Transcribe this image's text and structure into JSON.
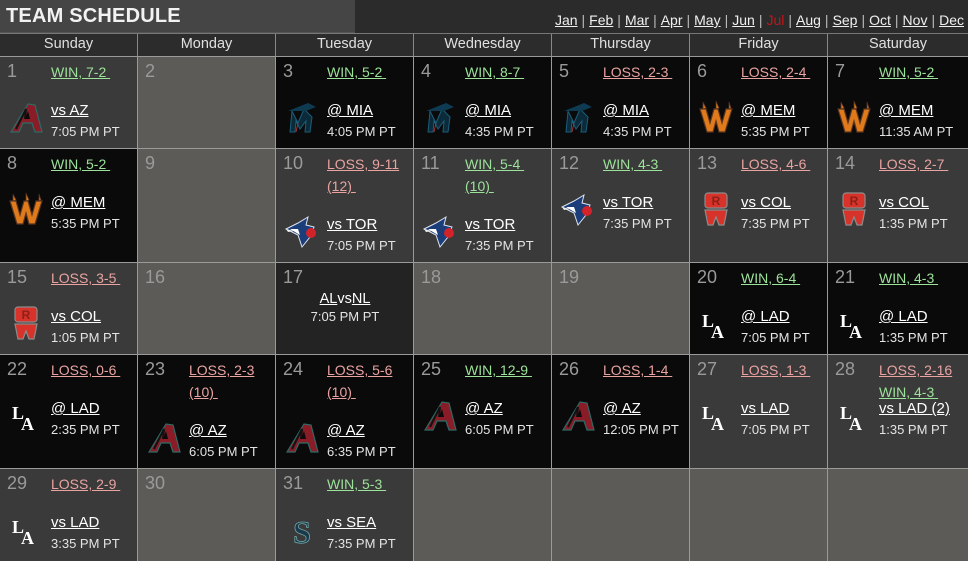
{
  "header": {
    "title": "TEAM SCHEDULE",
    "months": [
      "Jan",
      "Feb",
      "Mar",
      "Apr",
      "May",
      "Jun",
      "Jul",
      "Aug",
      "Sep",
      "Oct",
      "Nov",
      "Dec"
    ],
    "current_month": "Jul",
    "current_month_color": "#c0161b"
  },
  "weekdays": [
    "Sunday",
    "Monday",
    "Tuesday",
    "Wednesday",
    "Thursday",
    "Friday",
    "Saturday"
  ],
  "colors": {
    "win": "#9de29a",
    "loss": "#e9a3a1",
    "home_cell": "#3a3a3a",
    "away_cell": "#0a0a0a",
    "off_cell": "#5c5b57"
  },
  "days": {
    "d1": {
      "num": "1",
      "result": "WIN, 7-2 ",
      "opp": "vs AZ",
      "time": "7:05 PM PT",
      "logo": "diamondbacks-logo"
    },
    "d2": {
      "num": "2"
    },
    "d3": {
      "num": "3",
      "result": "WIN, 5-2 ",
      "opp": "@ MIA",
      "time": "4:05 PM PT",
      "logo": "marlins-logo"
    },
    "d4": {
      "num": "4",
      "result": "WIN, 8-7 ",
      "opp": "@ MIA",
      "time": "4:35 PM PT",
      "logo": "marlins-logo"
    },
    "d5": {
      "num": "5",
      "result": "LOSS, 2-3 ",
      "opp": "@ MIA",
      "time": "4:35 PM PT",
      "logo": "marlins-logo"
    },
    "d6": {
      "num": "6",
      "result": "LOSS, 2-4 ",
      "opp": "@ MEM",
      "time": "5:35 PM PT",
      "logo": "redbirds-logo"
    },
    "d7": {
      "num": "7",
      "result": "WIN, 5-2 ",
      "opp": "@ MEM",
      "time": "11:35 AM PT",
      "logo": "redbirds-logo"
    },
    "d8": {
      "num": "8",
      "result": "WIN, 5-2 ",
      "opp": "@ MEM",
      "time": "5:35 PM PT",
      "logo": "redbirds-logo"
    },
    "d9": {
      "num": "9"
    },
    "d10": {
      "num": "10",
      "result": "LOSS, 9-11",
      "result2": "(12) ",
      "opp": "vs TOR",
      "time": "7:05 PM PT",
      "logo": "blue-jays-logo"
    },
    "d11": {
      "num": "11",
      "result": "WIN, 5-4 ",
      "result2": "(10) ",
      "opp": "vs TOR",
      "time": "7:35 PM PT",
      "logo": "blue-jays-logo"
    },
    "d12": {
      "num": "12",
      "result": "WIN, 4-3 ",
      "opp": "vs TOR",
      "time": "7:35 PM PT",
      "logo": "blue-jays-logo"
    },
    "d13": {
      "num": "13",
      "result": "LOSS, 4-6 ",
      "opp": "vs COL",
      "time": "7:35 PM PT",
      "logo": "rw-logo"
    },
    "d14": {
      "num": "14",
      "result": "LOSS, 2-7 ",
      "opp": "vs COL",
      "time": "1:35 PM PT",
      "logo": "rw-logo"
    },
    "d15": {
      "num": "15",
      "result": "LOSS, 3-5 ",
      "opp": "vs COL",
      "time": "1:05 PM PT",
      "logo": "rw-logo"
    },
    "d16": {
      "num": "16"
    },
    "d17": {
      "num": "17",
      "al": "AL",
      "vs": "vs",
      "nl": "NL",
      "time": "7:05 PM PT"
    },
    "d18": {
      "num": "18"
    },
    "d19": {
      "num": "19"
    },
    "d20": {
      "num": "20",
      "result": "WIN, 6-4 ",
      "opp": "@ LAD",
      "time": "7:05 PM PT",
      "logo": "dodgers-logo"
    },
    "d21": {
      "num": "21",
      "result": "WIN, 4-3 ",
      "opp": "@ LAD",
      "time": "1:35 PM PT",
      "logo": "dodgers-logo"
    },
    "d22": {
      "num": "22",
      "result": "LOSS, 0-6 ",
      "opp": "@ LAD",
      "time": "2:35 PM PT",
      "logo": "dodgers-logo"
    },
    "d23": {
      "num": "23",
      "result": "LOSS, 2-3",
      "result2": "(10) ",
      "opp": "@ AZ",
      "time": "6:05 PM PT",
      "logo": "diamondbacks-logo"
    },
    "d24": {
      "num": "24",
      "result": "LOSS, 5-6",
      "result2": "(10) ",
      "opp": "@ AZ",
      "time": "6:35 PM PT",
      "logo": "diamondbacks-logo"
    },
    "d25": {
      "num": "25",
      "result": "WIN, 12-9 ",
      "opp": "@ AZ",
      "time": "6:05 PM PT",
      "logo": "diamondbacks-logo"
    },
    "d26": {
      "num": "26",
      "result": "LOSS, 1-4 ",
      "opp": "@ AZ",
      "time": "12:05 PM PT",
      "logo": "diamondbacks-logo"
    },
    "d27": {
      "num": "27",
      "result": "LOSS, 1-3 ",
      "opp": "vs LAD",
      "time": "7:05 PM PT",
      "logo": "dodgers-logo"
    },
    "d28": {
      "num": "28",
      "result": "LOSS, 2-16",
      "result2": "WIN, 4-3 ",
      "opp": "vs LAD (2)",
      "time": "1:35 PM PT",
      "logo": "dodgers-logo"
    },
    "d29": {
      "num": "29",
      "result": "LOSS, 2-9 ",
      "opp": "vs LAD",
      "time": "3:35 PM PT",
      "logo": "dodgers-logo"
    },
    "d30": {
      "num": "30"
    },
    "d31": {
      "num": "31",
      "result": "WIN, 5-3 ",
      "opp": "vs SEA",
      "time": "7:35 PM PT",
      "logo": "mariners-logo"
    }
  }
}
